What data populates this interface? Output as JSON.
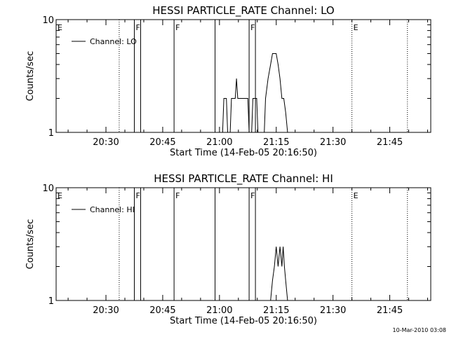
{
  "chart_data": [
    {
      "type": "line",
      "title": "HESSI PARTICLE_RATE Channel: LO",
      "xlabel": "Start Time (14-Feb-05 20:16:50)",
      "ylabel": "Counts/sec",
      "yscale": "log",
      "ylim": [
        1,
        10
      ],
      "xlim": [
        "20:16:50",
        "21:55:50"
      ],
      "ytick_labels": [
        "1",
        "10"
      ],
      "xtick_labels": [
        "20:30",
        "20:45",
        "21:00",
        "21:15",
        "21:30",
        "21:45"
      ],
      "legend": {
        "label": "Channel: LO",
        "placement": "top-left"
      },
      "markers": [
        {
          "time": "20:16:50",
          "label": "E",
          "style": "dotted"
        },
        {
          "time": "20:33:30",
          "label": "",
          "style": "dotted"
        },
        {
          "time": "20:37:30",
          "label": "F",
          "style": "solid"
        },
        {
          "time": "20:39:10",
          "label": "",
          "style": "solid"
        },
        {
          "time": "20:48:00",
          "label": "F",
          "style": "solid"
        },
        {
          "time": "20:58:50",
          "label": "",
          "style": "solid"
        },
        {
          "time": "21:07:50",
          "label": "F",
          "style": "solid"
        },
        {
          "time": "21:09:30",
          "label": "",
          "style": "solid"
        },
        {
          "time": "21:35:00",
          "label": "E",
          "style": "dotted"
        },
        {
          "time": "21:49:40",
          "label": "",
          "style": "dotted"
        }
      ],
      "series": [
        {
          "name": "Channel: LO",
          "x": [
            "21:00:50",
            "21:01:10",
            "21:01:50",
            "21:02:10",
            "21:02:50",
            "21:03:10",
            "21:03:50",
            "21:04:10",
            "21:04:30",
            "21:04:50",
            "21:05:10",
            "21:05:30",
            "21:07:30",
            "21:07:50",
            "21:08:30",
            "21:08:50",
            "21:09:50",
            "21:10:10",
            "21:11:50",
            "21:12:10",
            "21:12:50",
            "21:13:30",
            "21:14:00",
            "21:14:30",
            "21:15:00",
            "21:15:30",
            "21:16:00",
            "21:16:30",
            "21:17:00",
            "21:17:30",
            "21:18:00",
            "21:18:30",
            "21:19:00",
            "21:19:10"
          ],
          "y": [
            1,
            2,
            2,
            1,
            1,
            2,
            2,
            2,
            3,
            2,
            2,
            2,
            2,
            1,
            1,
            2,
            2,
            1,
            1,
            2,
            3,
            4,
            5,
            5,
            5,
            4,
            3,
            2,
            2,
            1.5,
            1,
            1,
            1,
            1
          ]
        }
      ]
    },
    {
      "type": "line",
      "title": "HESSI PARTICLE_RATE Channel: HI",
      "xlabel": "Start Time (14-Feb-05 20:16:50)",
      "ylabel": "Counts/sec",
      "yscale": "log",
      "ylim": [
        1,
        10
      ],
      "xlim": [
        "20:16:50",
        "21:55:50"
      ],
      "ytick_labels": [
        "1",
        "10"
      ],
      "xtick_labels": [
        "20:30",
        "20:45",
        "21:00",
        "21:15",
        "21:30",
        "21:45"
      ],
      "legend": {
        "label": "Channel: HI",
        "placement": "top-left"
      },
      "markers": [
        {
          "time": "20:16:50",
          "label": "E",
          "style": "dotted"
        },
        {
          "time": "20:33:30",
          "label": "",
          "style": "dotted"
        },
        {
          "time": "20:37:30",
          "label": "F",
          "style": "solid"
        },
        {
          "time": "20:39:10",
          "label": "",
          "style": "solid"
        },
        {
          "time": "20:48:00",
          "label": "F",
          "style": "solid"
        },
        {
          "time": "20:58:50",
          "label": "",
          "style": "solid"
        },
        {
          "time": "21:07:50",
          "label": "F",
          "style": "solid"
        },
        {
          "time": "21:09:30",
          "label": "",
          "style": "solid"
        },
        {
          "time": "21:35:00",
          "label": "E",
          "style": "dotted"
        },
        {
          "time": "21:49:40",
          "label": "",
          "style": "dotted"
        }
      ],
      "series": [
        {
          "name": "Channel: HI",
          "x": [
            "21:13:30",
            "21:14:00",
            "21:14:30",
            "21:15:00",
            "21:15:30",
            "21:16:00",
            "21:16:30",
            "21:16:50",
            "21:17:10",
            "21:17:30",
            "21:18:00",
            "21:18:30",
            "21:18:50"
          ],
          "y": [
            1,
            1.5,
            2,
            3,
            2,
            3,
            2,
            3,
            2,
            1.5,
            1,
            1,
            1
          ]
        }
      ]
    }
  ],
  "footer": {
    "timestamp": "10-Mar-2010 03:08"
  }
}
